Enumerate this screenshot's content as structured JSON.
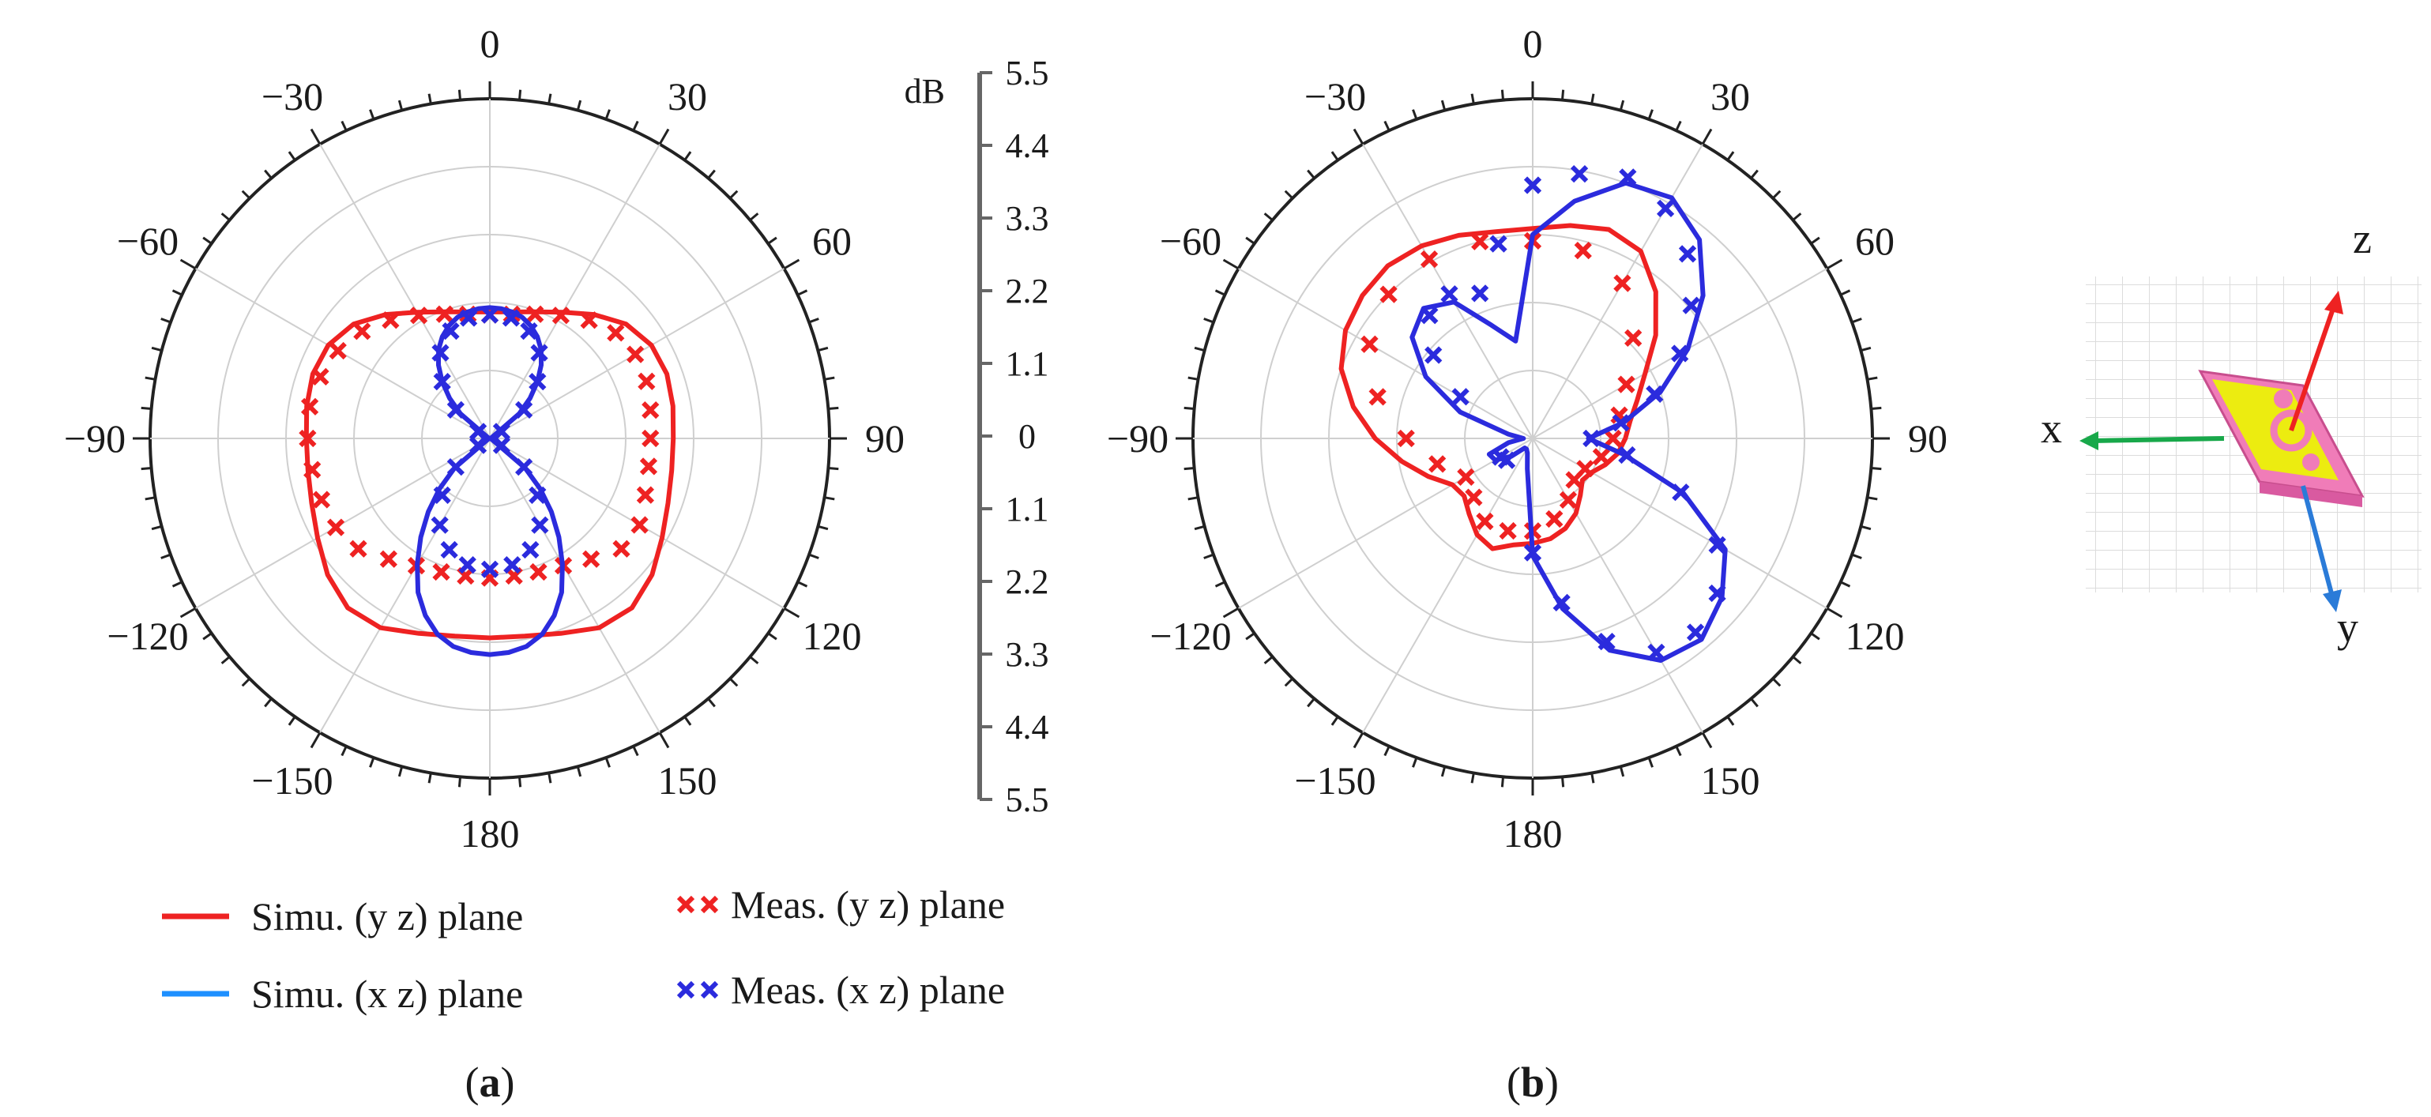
{
  "chart_data": [
    {
      "type": "polar",
      "panel_label_prefix": "(",
      "panel_label_letter": "a",
      "panel_label_suffix": ")",
      "angle_tick_labels": [
        "0",
        "30",
        "60",
        "90",
        "120",
        "150",
        "180",
        "−150",
        "−120",
        "−90",
        "−60",
        "−30"
      ],
      "angle_tick_values_deg": [
        0,
        30,
        60,
        90,
        120,
        150,
        180,
        210,
        240,
        270,
        300,
        330
      ],
      "radial_axis": {
        "unit": "dB",
        "tick_labels": [
          "5.5",
          "4.4",
          "3.3",
          "2.2",
          "1.1",
          "0",
          "1.1",
          "2.2",
          "3.3",
          "4.4",
          "5.5"
        ],
        "grid_ring_count": 5,
        "range": [
          0,
          5.5
        ]
      },
      "series": [
        {
          "name": "Simu. (y z) plane",
          "style": "line",
          "color": "#ee2222",
          "angles_deg": [
            0,
            10,
            20,
            30,
            40,
            50,
            60,
            70,
            80,
            90,
            100,
            110,
            120,
            130,
            140,
            150,
            160,
            170,
            180,
            190,
            200,
            210,
            220,
            230,
            240,
            250,
            260,
            270,
            280,
            290,
            300,
            310,
            320,
            330,
            340,
            350
          ],
          "r": [
            2.05,
            2.08,
            2.18,
            2.36,
            2.62,
            2.88,
            3.02,
            3.05,
            3.01,
            2.97,
            2.99,
            3.07,
            3.22,
            3.43,
            3.58,
            3.54,
            3.36,
            3.25,
            3.23,
            3.25,
            3.36,
            3.54,
            3.58,
            3.43,
            3.22,
            3.07,
            2.99,
            2.97,
            3.01,
            3.05,
            3.02,
            2.88,
            2.62,
            2.36,
            2.18,
            2.08
          ]
        },
        {
          "name": "Meas. (y z) plane",
          "style": "markers",
          "color": "#ee2222",
          "angles_deg": [
            0,
            10,
            20,
            30,
            40,
            50,
            60,
            70,
            80,
            90,
            100,
            110,
            120,
            130,
            140,
            150,
            160,
            170,
            180,
            190,
            200,
            210,
            220,
            230,
            240,
            250,
            260,
            270,
            280,
            290,
            300,
            310,
            320,
            330,
            340,
            350
          ],
          "r": [
            2.0,
            2.04,
            2.14,
            2.3,
            2.5,
            2.66,
            2.72,
            2.7,
            2.64,
            2.6,
            2.61,
            2.68,
            2.8,
            2.78,
            2.55,
            2.38,
            2.3,
            2.26,
            2.26,
            2.26,
            2.3,
            2.38,
            2.55,
            2.78,
            2.88,
            2.9,
            2.92,
            2.95,
            2.96,
            2.92,
            2.84,
            2.7,
            2.5,
            2.3,
            2.14,
            2.04
          ]
        },
        {
          "name": "Simu. (x z) plane",
          "style": "line",
          "color": "#2b2bdd",
          "legend_color": "#1e90ff",
          "angles_deg": [
            0,
            5,
            10,
            15,
            20,
            25,
            30,
            35,
            40,
            45,
            50,
            60,
            70,
            80,
            90,
            100,
            110,
            120,
            130,
            135,
            140,
            145,
            150,
            155,
            160,
            165,
            170,
            175,
            180,
            185,
            190,
            195,
            200,
            205,
            210,
            215,
            220,
            225,
            230,
            240,
            250,
            260,
            270,
            280,
            290,
            300,
            310,
            315,
            320,
            325,
            330,
            335,
            340,
            345,
            350,
            355
          ],
          "r": [
            2.12,
            2.11,
            2.08,
            2.03,
            1.94,
            1.82,
            1.66,
            1.45,
            1.2,
            0.92,
            0.62,
            0.05,
            0.02,
            0.02,
            0.02,
            0.02,
            0.02,
            0.05,
            0.75,
            1.15,
            1.55,
            1.95,
            2.35,
            2.75,
            3.05,
            3.28,
            3.42,
            3.48,
            3.5,
            3.48,
            3.42,
            3.28,
            3.05,
            2.75,
            2.35,
            1.95,
            1.55,
            1.15,
            0.75,
            0.05,
            0.02,
            0.02,
            0.02,
            0.02,
            0.02,
            0.05,
            0.62,
            0.92,
            1.2,
            1.45,
            1.66,
            1.82,
            1.94,
            2.03,
            2.08,
            2.11
          ]
        },
        {
          "name": "Meas. (x z) plane",
          "style": "markers",
          "color": "#2b2bdd",
          "angles_deg": [
            0,
            10,
            20,
            30,
            40,
            50,
            60,
            120,
            130,
            140,
            150,
            160,
            170,
            180,
            190,
            200,
            210,
            220,
            230,
            240,
            300,
            310,
            320,
            330,
            340,
            350
          ],
          "r": [
            2.0,
            1.98,
            1.85,
            1.6,
            1.2,
            0.72,
            0.22,
            0.22,
            0.72,
            1.2,
            1.62,
            1.92,
            2.08,
            2.12,
            2.08,
            1.92,
            1.62,
            1.2,
            0.72,
            0.22,
            0.22,
            0.72,
            1.2,
            1.6,
            1.85,
            1.98
          ]
        }
      ]
    },
    {
      "type": "polar",
      "panel_label_prefix": "(",
      "panel_label_letter": "b",
      "panel_label_suffix": ")",
      "angle_tick_labels": [
        "0",
        "30",
        "60",
        "90",
        "120",
        "150",
        "180",
        "−150",
        "−120",
        "−90",
        "−60",
        "−30"
      ],
      "angle_tick_values_deg": [
        0,
        30,
        60,
        90,
        120,
        150,
        180,
        210,
        240,
        270,
        300,
        330
      ],
      "radial_axis": {
        "grid_ring_count": 5,
        "range": [
          0,
          5.5
        ]
      },
      "series": [
        {
          "name": "Simu. (y z) plane",
          "style": "line",
          "color": "#ee2222",
          "angles_deg": [
            0,
            10,
            20,
            30,
            40,
            50,
            60,
            70,
            80,
            90,
            100,
            110,
            120,
            130,
            140,
            150,
            160,
            170,
            180,
            190,
            200,
            210,
            220,
            230,
            240,
            250,
            260,
            270,
            280,
            290,
            300,
            310,
            320,
            330,
            340,
            350
          ],
          "r": [
            3.4,
            3.5,
            3.6,
            3.5,
            3.1,
            2.6,
            2.1,
            1.8,
            1.6,
            1.5,
            1.4,
            1.25,
            1.1,
            1.05,
            1.2,
            1.4,
            1.55,
            1.65,
            1.7,
            1.75,
            1.9,
            1.8,
            1.6,
            1.45,
            1.5,
            1.8,
            2.15,
            2.55,
            2.95,
            3.3,
            3.5,
            3.6,
            3.65,
            3.6,
            3.5,
            3.4
          ]
        },
        {
          "name": "Meas. (y z) plane",
          "style": "markers",
          "color": "#ee2222",
          "angles_deg": [
            0,
            15,
            30,
            45,
            60,
            75,
            90,
            105,
            120,
            135,
            150,
            165,
            180,
            195,
            210,
            225,
            240,
            255,
            270,
            285,
            300,
            315,
            330,
            345
          ],
          "r": [
            3.2,
            3.15,
            2.9,
            2.3,
            1.75,
            1.45,
            1.3,
            1.15,
            0.98,
            0.95,
            1.15,
            1.35,
            1.5,
            1.55,
            1.55,
            1.35,
            1.25,
            1.6,
            2.05,
            2.6,
            3.05,
            3.3,
            3.35,
            3.3
          ]
        },
        {
          "name": "Simu. (x z) plane",
          "style": "line",
          "color": "#2b2bdd",
          "angles_deg": [
            0,
            10,
            20,
            30,
            40,
            50,
            60,
            70,
            80,
            90,
            100,
            110,
            120,
            130,
            140,
            150,
            160,
            170,
            180,
            190,
            200,
            210,
            220,
            230,
            240,
            250,
            260,
            270,
            280,
            290,
            300,
            310,
            320,
            330,
            340,
            350
          ],
          "r": [
            3.3,
            3.9,
            4.4,
            4.5,
            4.2,
            3.6,
            2.9,
            2.2,
            1.5,
            0.9,
            1.5,
            2.6,
            3.6,
            4.0,
            4.25,
            4.15,
            3.65,
            2.8,
            1.9,
            0.5,
            0.25,
            0.2,
            0.2,
            0.45,
            0.7,
            0.75,
            0.4,
            0.15,
            0.4,
            1.25,
            2.0,
            2.55,
            2.75,
            2.55,
            1.95,
            1.6
          ]
        },
        {
          "name": "Meas. (x z) plane",
          "style": "markers",
          "color": "#2b2bdd",
          "angles_deg": [
            0,
            10,
            20,
            30,
            40,
            50,
            60,
            70,
            80,
            90,
            100,
            110,
            120,
            130,
            140,
            150,
            160,
            170,
            180,
            230,
            240,
            300,
            310,
            320,
            330,
            340,
            350
          ],
          "r": [
            4.1,
            4.35,
            4.5,
            4.3,
            3.9,
            3.35,
            2.75,
            2.1,
            1.45,
            0.95,
            1.55,
            2.55,
            3.45,
            3.9,
            4.1,
            4.0,
            3.5,
            2.7,
            1.85,
            0.55,
            0.6,
            1.35,
            2.1,
            2.6,
            2.7,
            2.5,
            3.2
          ]
        }
      ]
    }
  ],
  "legend": [
    {
      "label": "Simu. (y z) plane",
      "style": "line",
      "color": "#ee2222"
    },
    {
      "label": "Meas. (y z) plane",
      "style": "markers",
      "color": "#ee2222"
    },
    {
      "label": "Simu. (x z) plane",
      "style": "line",
      "color": "#1e90ff"
    },
    {
      "label": "Meas. (x z) plane",
      "style": "markers",
      "color": "#2b2bdd"
    }
  ],
  "coordinate_inset": {
    "axes": [
      {
        "label": "z",
        "color": "#ee2222"
      },
      {
        "label": "x",
        "color": "#18a84a"
      },
      {
        "label": "y",
        "color": "#2a7bd8"
      }
    ]
  }
}
